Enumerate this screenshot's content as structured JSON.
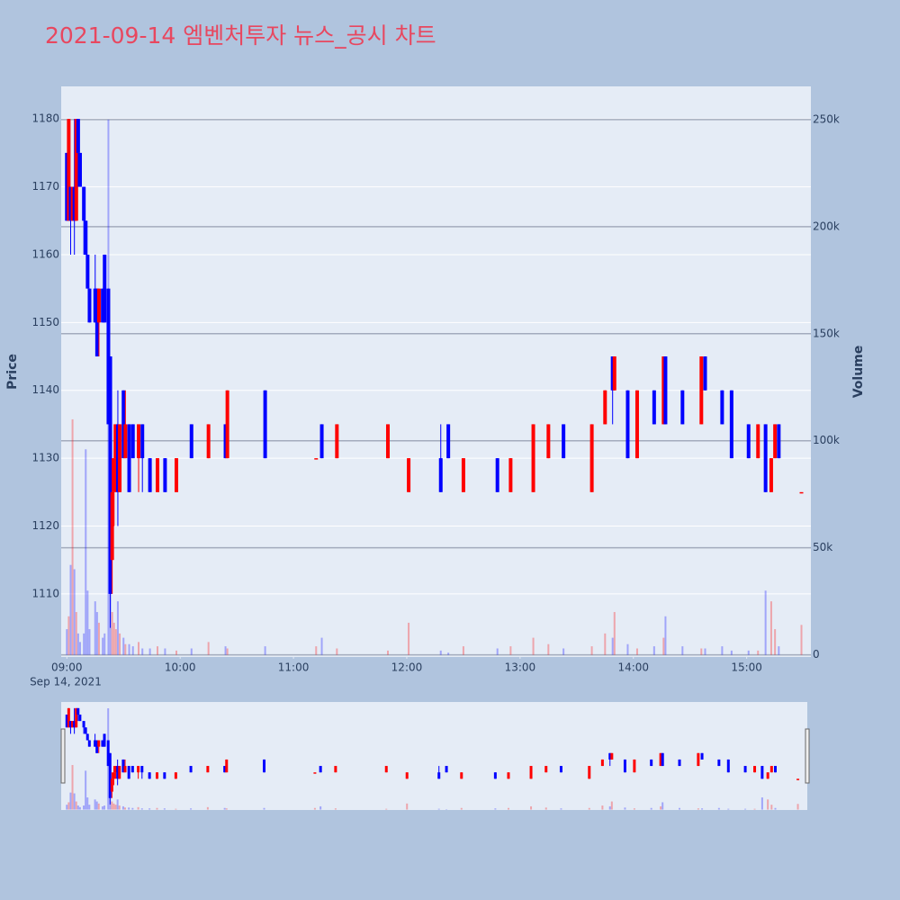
{
  "chart_data": {
    "type": "candlestick",
    "title": "2021-09-14 엠벤처투자 뉴스_공시 차트",
    "y_title": "Price",
    "y2_title": "Volume",
    "x_date_label": "Sep 14, 2021",
    "increasing_color": "#ff0000",
    "decreasing_color": "#0000ff",
    "x": [
      "09:00",
      "09:01",
      "09:02",
      "09:03",
      "09:04",
      "09:05",
      "09:06",
      "09:07",
      "09:09",
      "09:10",
      "09:11",
      "09:12",
      "09:15",
      "09:16",
      "09:17",
      "09:19",
      "09:20",
      "09:22",
      "09:23",
      "09:24",
      "09:25",
      "09:26",
      "09:27",
      "09:28",
      "09:30",
      "09:31",
      "09:33",
      "09:35",
      "09:38",
      "09:40",
      "09:44",
      "09:48",
      "09:52",
      "09:58",
      "10:06",
      "10:15",
      "10:24",
      "10:25",
      "10:45",
      "11:12",
      "11:15",
      "11:23",
      "11:50",
      "12:01",
      "12:18",
      "12:22",
      "12:30",
      "12:48",
      "12:55",
      "13:07",
      "13:15",
      "13:23",
      "13:38",
      "13:45",
      "13:49",
      "13:50",
      "13:57",
      "14:02",
      "14:11",
      "14:16",
      "14:17",
      "14:26",
      "14:36",
      "14:38",
      "14:47",
      "14:52",
      "15:01",
      "15:06",
      "15:10",
      "15:13",
      "15:15",
      "15:17",
      "15:29"
    ],
    "open": [
      1175,
      1165,
      1170,
      1165,
      1170,
      1165,
      1180,
      1175,
      1170,
      1165,
      1160,
      1155,
      1155,
      1155,
      1150,
      1155,
      1160,
      1155,
      1145,
      1115,
      1125,
      1130,
      1135,
      1125,
      1140,
      1130,
      1135,
      1135,
      1130,
      1135,
      1130,
      1125,
      1130,
      1125,
      1135,
      1130,
      1135,
      1130,
      1140,
      1130,
      1135,
      1130,
      1130,
      1125,
      1130,
      1135,
      1125,
      1130,
      1125,
      1125,
      1130,
      1135,
      1125,
      1135,
      1145,
      1140,
      1140,
      1130,
      1140,
      1135,
      1145,
      1140,
      1135,
      1145,
      1140,
      1140,
      1135,
      1130,
      1135,
      1125,
      1130,
      1135,
      1125
    ],
    "high": [
      1175,
      1180,
      1170,
      1170,
      1180,
      1180,
      1180,
      1175,
      1170,
      1165,
      1160,
      1155,
      1160,
      1155,
      1155,
      1155,
      1160,
      1155,
      1145,
      1130,
      1135,
      1135,
      1140,
      1135,
      1140,
      1140,
      1135,
      1135,
      1135,
      1135,
      1130,
      1130,
      1130,
      1130,
      1135,
      1135,
      1135,
      1140,
      1140,
      1130,
      1135,
      1135,
      1135,
      1130,
      1135,
      1135,
      1130,
      1130,
      1130,
      1135,
      1135,
      1135,
      1135,
      1140,
      1145,
      1145,
      1140,
      1140,
      1140,
      1145,
      1145,
      1140,
      1145,
      1145,
      1140,
      1140,
      1135,
      1135,
      1135,
      1130,
      1135,
      1135,
      1125
    ],
    "low": [
      1165,
      1165,
      1160,
      1165,
      1160,
      1165,
      1170,
      1170,
      1160,
      1160,
      1155,
      1150,
      1150,
      1145,
      1145,
      1150,
      1150,
      1135,
      1105,
      1110,
      1120,
      1125,
      1120,
      1125,
      1130,
      1130,
      1125,
      1130,
      1125,
      1125,
      1125,
      1125,
      1125,
      1125,
      1130,
      1130,
      1130,
      1130,
      1130,
      1130,
      1130,
      1130,
      1130,
      1125,
      1125,
      1130,
      1125,
      1125,
      1125,
      1125,
      1130,
      1130,
      1125,
      1135,
      1135,
      1140,
      1130,
      1130,
      1135,
      1135,
      1135,
      1135,
      1135,
      1140,
      1135,
      1130,
      1130,
      1130,
      1125,
      1125,
      1130,
      1130,
      1125
    ],
    "close": [
      1165,
      1180,
      1165,
      1170,
      1165,
      1180,
      1175,
      1170,
      1165,
      1160,
      1155,
      1150,
      1150,
      1145,
      1155,
      1150,
      1150,
      1135,
      1110,
      1125,
      1130,
      1135,
      1125,
      1135,
      1130,
      1135,
      1125,
      1130,
      1135,
      1130,
      1125,
      1130,
      1125,
      1130,
      1130,
      1135,
      1130,
      1140,
      1130,
      1130,
      1130,
      1135,
      1135,
      1130,
      1125,
      1130,
      1130,
      1125,
      1130,
      1135,
      1135,
      1130,
      1135,
      1140,
      1140,
      1145,
      1130,
      1140,
      1135,
      1145,
      1135,
      1135,
      1145,
      1140,
      1135,
      1130,
      1130,
      1135,
      1125,
      1130,
      1135,
      1130,
      1125
    ],
    "volume": [
      12000,
      18000,
      42000,
      110000,
      40000,
      20000,
      10000,
      6000,
      10000,
      96000,
      30000,
      12000,
      25000,
      20000,
      15000,
      8000,
      10000,
      250000,
      30000,
      20000,
      15000,
      12000,
      25000,
      10000,
      8000,
      5000,
      5000,
      4000,
      6000,
      3000,
      3000,
      4000,
      3000,
      2000,
      3000,
      6000,
      4000,
      3000,
      4000,
      4000,
      8000,
      3000,
      2000,
      15000,
      2000,
      1000,
      4000,
      3000,
      4000,
      8000,
      5000,
      3000,
      4000,
      10000,
      8000,
      20000,
      5000,
      3000,
      4000,
      8000,
      18000,
      4000,
      3000,
      3000,
      4000,
      2000,
      2000,
      2000,
      30000,
      25000,
      12000,
      4000,
      14000
    ],
    "xlim": [
      "08:57",
      "15:34"
    ],
    "xticks": [
      "09:00",
      "10:00",
      "11:00",
      "12:00",
      "13:00",
      "14:00",
      "15:00"
    ],
    "ylim": [
      1100.7,
      1184.8
    ],
    "yticks": [
      1110,
      1120,
      1130,
      1140,
      1150,
      1160,
      1170,
      1180
    ],
    "y2lim": [
      -1000,
      265500
    ],
    "y2ticks": [
      0,
      {
        "value": 50000,
        "label": "50k"
      },
      {
        "value": 100000,
        "label": "100k"
      },
      {
        "value": 150000,
        "label": "150k"
      },
      {
        "value": 200000,
        "label": "200k"
      },
      {
        "value": 250000,
        "label": "250k"
      }
    ],
    "grid": true
  }
}
